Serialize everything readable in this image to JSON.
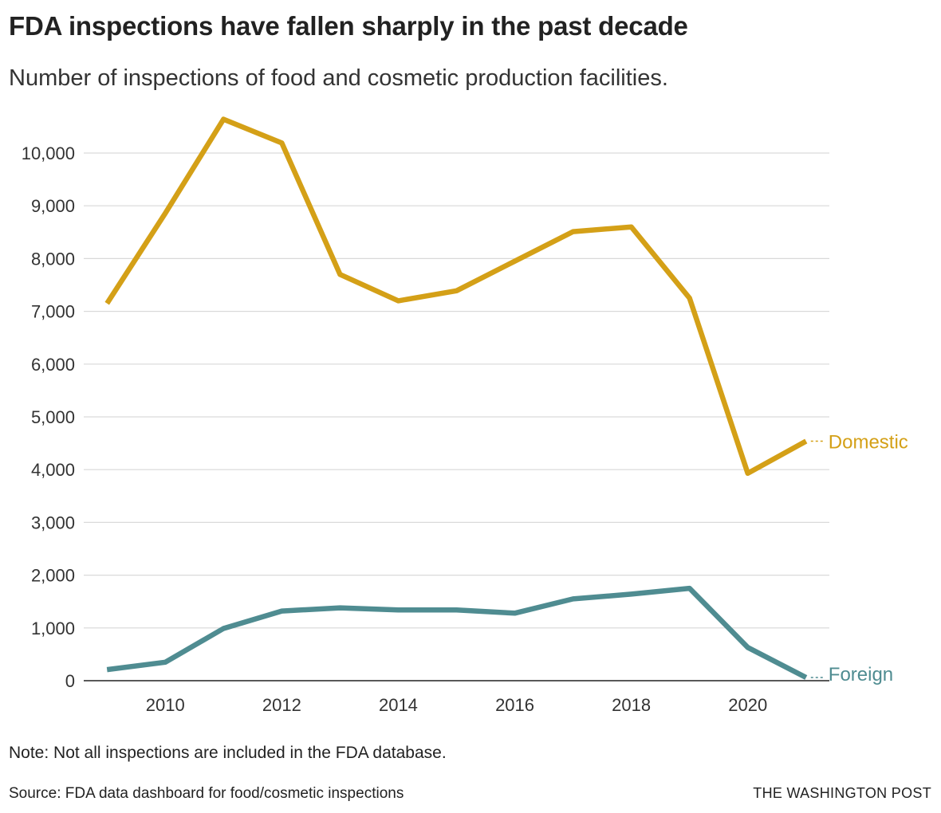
{
  "colors": {
    "domestic": "#d4a017",
    "foreign": "#4f8c91",
    "grid": "#d9d9d9",
    "axis": "#222222"
  },
  "footer": {
    "note": "Note: Not all inspections are included in the FDA database.",
    "source": "Source: FDA data dashboard for food/cosmetic inspections",
    "brand": "THE WASHINGTON POST"
  },
  "chart_data": {
    "type": "line",
    "title": "FDA inspections have fallen sharply in the past decade",
    "subtitle": "Number of inspections of food and cosmetic production facilities.",
    "xlabel": "",
    "ylabel": "",
    "x": [
      2009,
      2010,
      2011,
      2012,
      2013,
      2014,
      2015,
      2016,
      2017,
      2018,
      2019,
      2020,
      2021
    ],
    "xlim": [
      2008.6,
      2021.4
    ],
    "ylim": [
      0,
      10000
    ],
    "x_ticks": [
      2010,
      2012,
      2014,
      2016,
      2018,
      2020
    ],
    "x_tick_labels": [
      "2010",
      "2012",
      "2014",
      "2016",
      "2018",
      "2020"
    ],
    "y_ticks": [
      0,
      1000,
      2000,
      3000,
      4000,
      5000,
      6000,
      7000,
      8000,
      9000,
      10000
    ],
    "y_tick_labels": [
      "0",
      "1,000",
      "2,000",
      "3,000",
      "4,000",
      "5,000",
      "6,000",
      "7,000",
      "8,000",
      "9,000",
      "10,000"
    ],
    "grid": true,
    "legend": "direct labels at line ends (right)",
    "series": [
      {
        "name": "Domestic",
        "values": [
          7150,
          8860,
          10640,
          10190,
          7700,
          7200,
          7390,
          7950,
          8510,
          8600,
          7250,
          3930,
          4540
        ]
      },
      {
        "name": "Foreign",
        "values": [
          210,
          350,
          990,
          1320,
          1380,
          1340,
          1340,
          1280,
          1550,
          1640,
          1750,
          630,
          60
        ]
      }
    ]
  }
}
